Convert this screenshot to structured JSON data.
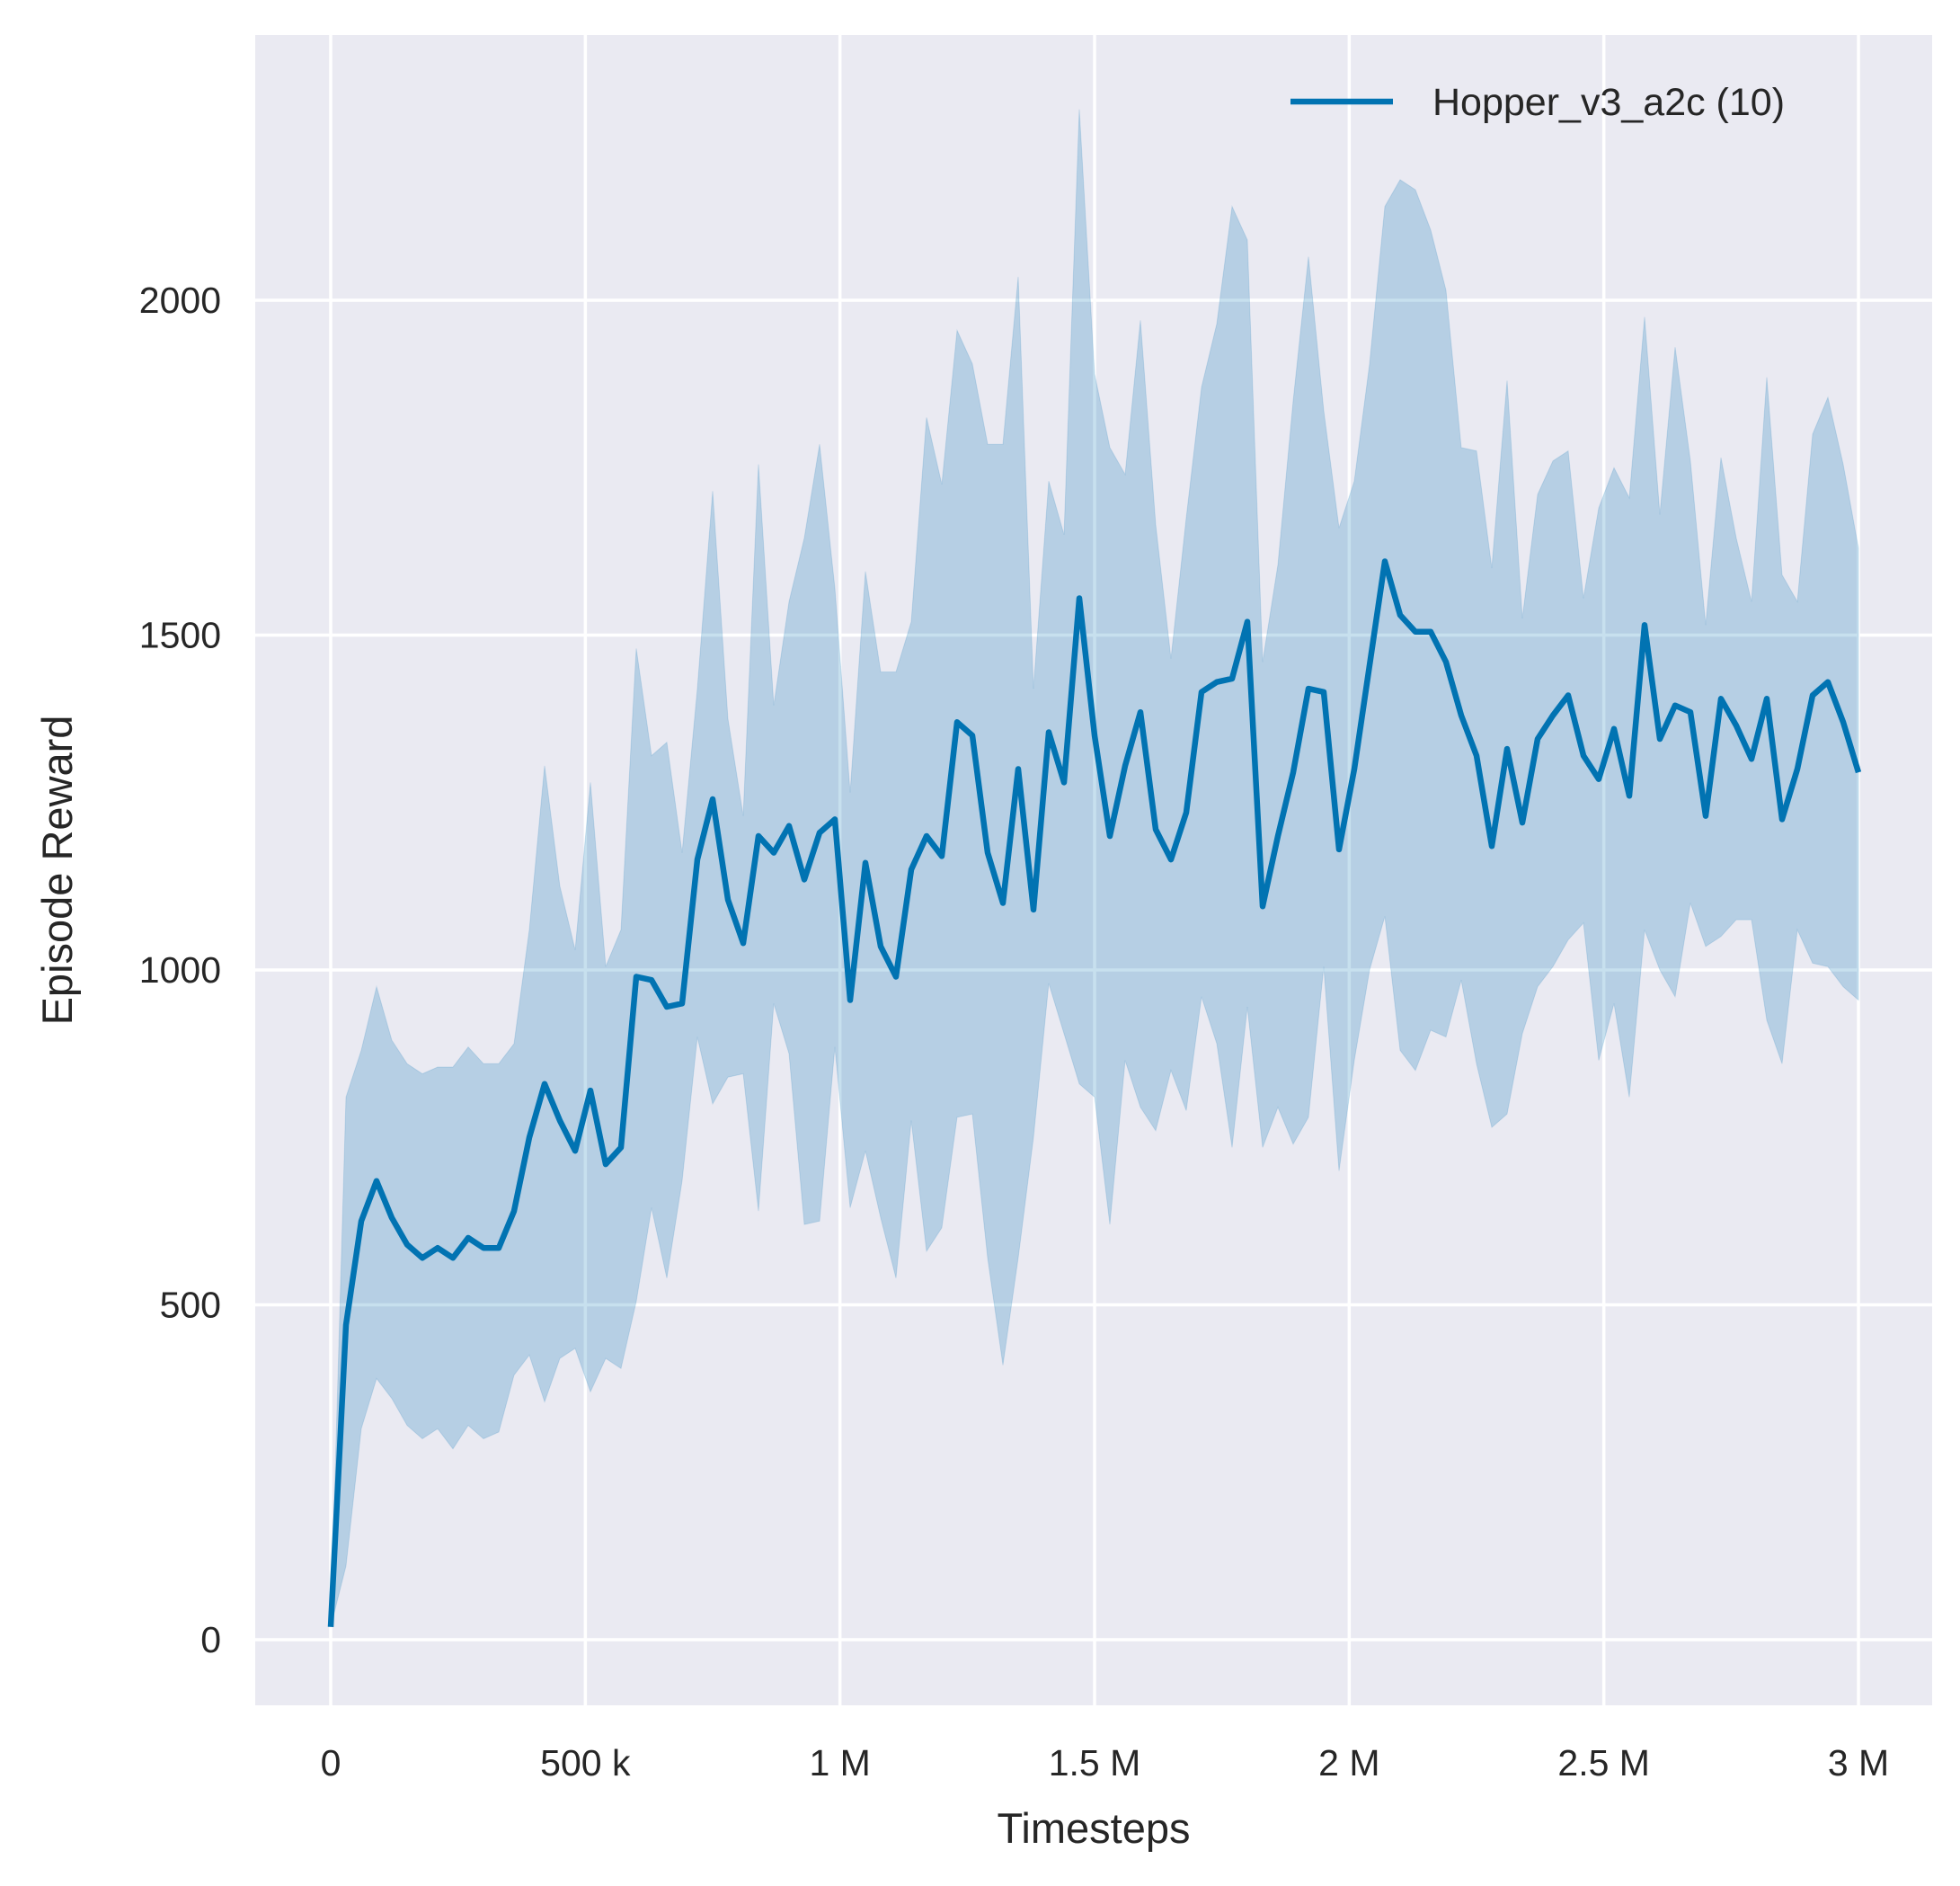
{
  "chart_data": {
    "type": "line",
    "title": "",
    "xlabel": "Timesteps",
    "ylabel": "Episode Reward",
    "xlim": [
      -150000,
      3150000
    ],
    "ylim": [
      -100,
      2400
    ],
    "grid": true,
    "legend_position": "top-right",
    "background_color": "#EAEAF2",
    "x_ticks": [
      0,
      500000,
      1000000,
      1500000,
      2000000,
      2500000,
      3000000
    ],
    "x_tick_labels": [
      "0",
      "500 k",
      "1 M",
      "1.5 M",
      "2 M",
      "2.5 M",
      "3 M"
    ],
    "y_ticks": [
      0,
      500,
      1000,
      1500,
      2000
    ],
    "y_tick_labels": [
      "0",
      "500",
      "1000",
      "1500",
      "2000"
    ],
    "series": [
      {
        "name": "Hopper_v3_a2c (10)",
        "color": "#0173B2",
        "band_color": "#0173B2",
        "x_step": 30000,
        "mean": [
          19,
          470,
          625,
          685,
          630,
          590,
          570,
          585,
          570,
          600,
          585,
          585,
          640,
          750,
          830,
          775,
          730,
          820,
          710,
          735,
          990,
          985,
          945,
          950,
          1165,
          1255,
          1105,
          1040,
          1200,
          1175,
          1215,
          1135,
          1205,
          1225,
          955,
          1160,
          1035,
          990,
          1150,
          1200,
          1170,
          1370,
          1350,
          1175,
          1100,
          1300,
          1090,
          1355,
          1280,
          1555,
          1350,
          1200,
          1305,
          1385,
          1210,
          1165,
          1235,
          1415,
          1430,
          1435,
          1520,
          1095,
          1200,
          1295,
          1420,
          1415,
          1180,
          1300,
          1455,
          1610,
          1530,
          1505,
          1505,
          1460,
          1380,
          1320,
          1185,
          1330,
          1220,
          1345,
          1380,
          1410,
          1320,
          1285,
          1360,
          1260,
          1515,
          1345,
          1395,
          1385,
          1230,
          1405,
          1365,
          1315,
          1405,
          1225,
          1300,
          1410,
          1430,
          1370,
          1295
        ],
        "upper": [
          19,
          810,
          880,
          975,
          895,
          860,
          845,
          855,
          855,
          885,
          860,
          860,
          890,
          1060,
          1305,
          1125,
          1030,
          1280,
          1005,
          1060,
          1480,
          1320,
          1340,
          1175,
          1420,
          1715,
          1375,
          1230,
          1755,
          1395,
          1550,
          1645,
          1785,
          1570,
          1265,
          1595,
          1445,
          1445,
          1520,
          1825,
          1725,
          1955,
          1905,
          1785,
          1785,
          2035,
          1420,
          1730,
          1650,
          2285,
          1890,
          1780,
          1740,
          1970,
          1665,
          1465,
          1675,
          1870,
          1965,
          2140,
          2090,
          1460,
          1605,
          1850,
          2065,
          1835,
          1660,
          1730,
          1905,
          2140,
          2180,
          2165,
          2105,
          2015,
          1780,
          1775,
          1600,
          1880,
          1525,
          1710,
          1760,
          1775,
          1555,
          1690,
          1750,
          1705,
          1975,
          1680,
          1930,
          1760,
          1515,
          1765,
          1645,
          1550,
          1885,
          1590,
          1550,
          1800,
          1855,
          1755,
          1630
        ],
        "lower": [
          19,
          110,
          315,
          390,
          360,
          320,
          300,
          315,
          285,
          320,
          300,
          310,
          395,
          425,
          355,
          420,
          435,
          370,
          420,
          405,
          505,
          645,
          540,
          685,
          900,
          800,
          840,
          845,
          640,
          950,
          875,
          620,
          625,
          885,
          645,
          730,
          630,
          540,
          775,
          580,
          615,
          780,
          785,
          570,
          410,
          570,
          750,
          980,
          905,
          830,
          810,
          620,
          865,
          795,
          760,
          850,
          790,
          960,
          890,
          735,
          945,
          735,
          795,
          740,
          780,
          1005,
          700,
          865,
          1000,
          1080,
          880,
          850,
          910,
          900,
          985,
          860,
          765,
          785,
          905,
          975,
          1005,
          1045,
          1070,
          865,
          950,
          810,
          1060,
          1000,
          960,
          1100,
          1035,
          1050,
          1075,
          1075,
          925,
          860,
          1060,
          1010,
          1005,
          975,
          955
        ]
      }
    ]
  }
}
